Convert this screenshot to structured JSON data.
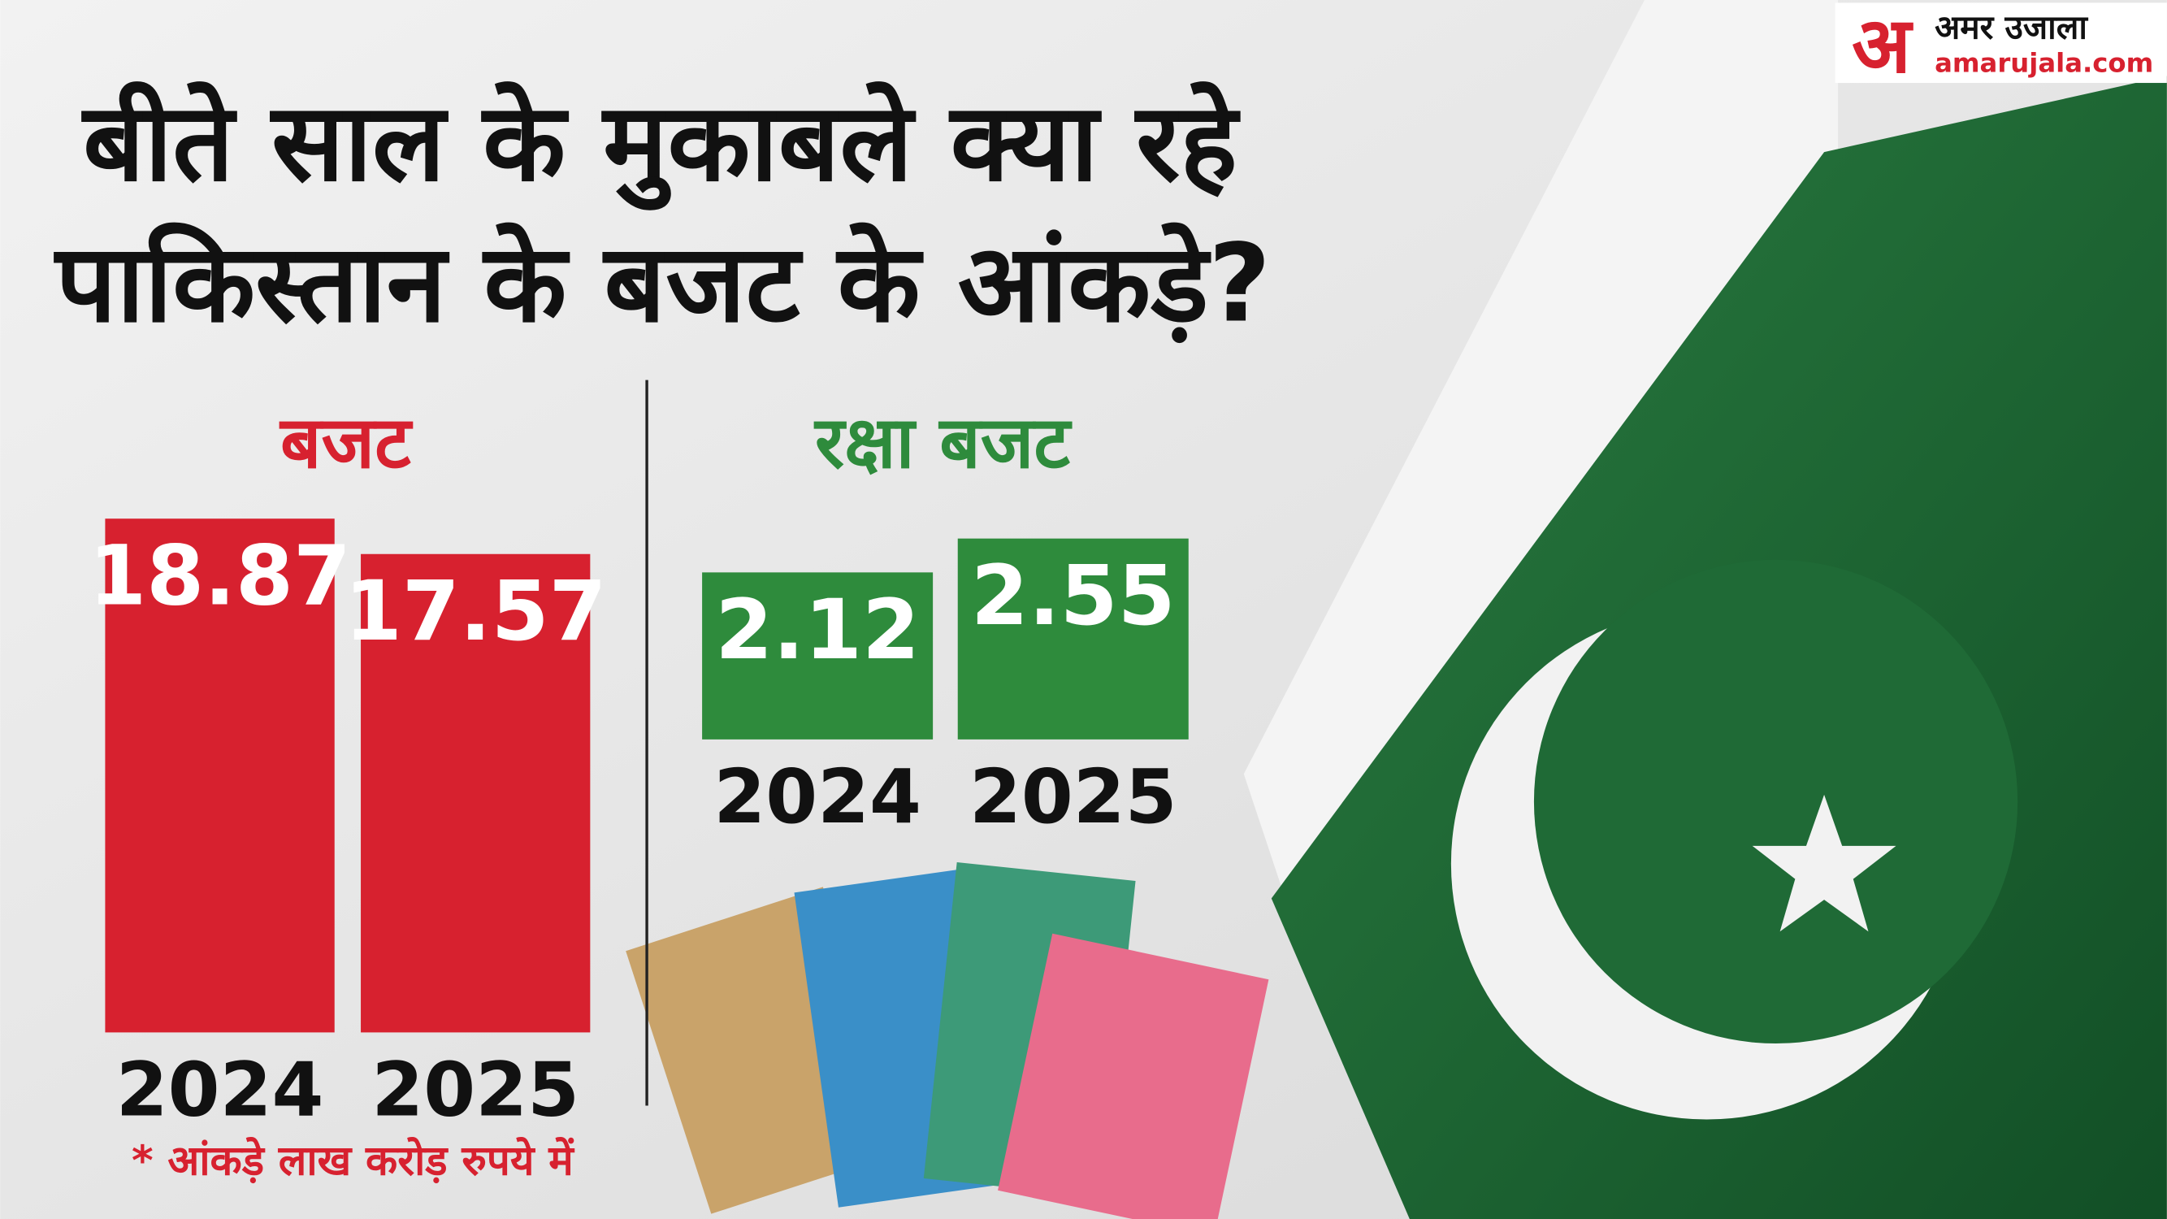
{
  "title": [
    "बीते साल के मुकाबले क्या रहे",
    "पाकिस्तान के बजट के आंकड़े?"
  ],
  "logo": {
    "mark": "अ",
    "name": "अमर उजाला",
    "site": "amarujala.com"
  },
  "footnote": "* आंकड़े लाख करोड़ रुपये में",
  "chart_data": [
    {
      "type": "bar",
      "title": "बजट",
      "categories": [
        "2024",
        "2025"
      ],
      "values": [
        18.87,
        17.57
      ],
      "color": "#d7212f",
      "ylim": [
        0,
        20
      ]
    },
    {
      "type": "bar",
      "title": "रक्षा बजट",
      "categories": [
        "2024",
        "2025"
      ],
      "values": [
        2.12,
        2.55
      ],
      "color": "#2e8b3c",
      "ylim": [
        0,
        3
      ]
    }
  ]
}
